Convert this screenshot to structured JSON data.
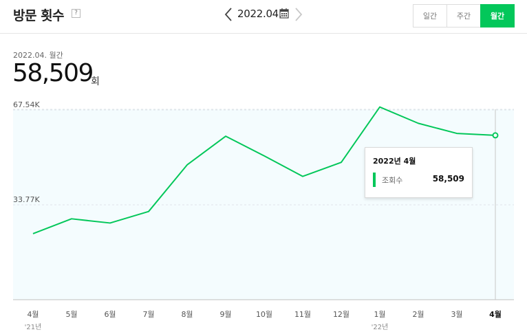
{
  "header": {
    "title": "방문 횟수",
    "help_glyph": "?",
    "current_period": "2022.04.",
    "period_tabs": [
      "일간",
      "주간",
      "월간"
    ],
    "active_tab": "월간"
  },
  "summary": {
    "caption": "2022.04. 월간",
    "value": "58,509",
    "unit": "회"
  },
  "tooltip": {
    "title": "2022년 4월",
    "series_label": "조회수",
    "value": "58,509"
  },
  "colors": {
    "accent": "#03c75a",
    "plot_bg": "#f4fcfe",
    "grid": "#dfe5ea"
  },
  "chart_data": {
    "type": "line",
    "categories": [
      "4월",
      "5월",
      "6월",
      "7월",
      "8월",
      "9월",
      "10월",
      "11월",
      "12월",
      "1월",
      "2월",
      "3월",
      "4월"
    ],
    "year_labels": [
      {
        "index": 0,
        "label": "'21년"
      },
      {
        "index": 9,
        "label": "'22년"
      }
    ],
    "series": [
      {
        "values": [
          23500,
          28800,
          27300,
          31400,
          48000,
          58200,
          51200,
          43900,
          48900,
          68600,
          62800,
          59200,
          58509
        ]
      }
    ],
    "y_ticks": [
      {
        "value": 33770,
        "label": "33.77K"
      },
      {
        "value": 67540,
        "label": "67.54K"
      }
    ],
    "ylim": [
      0,
      67540
    ],
    "highlight_index": 12,
    "grid": true
  }
}
